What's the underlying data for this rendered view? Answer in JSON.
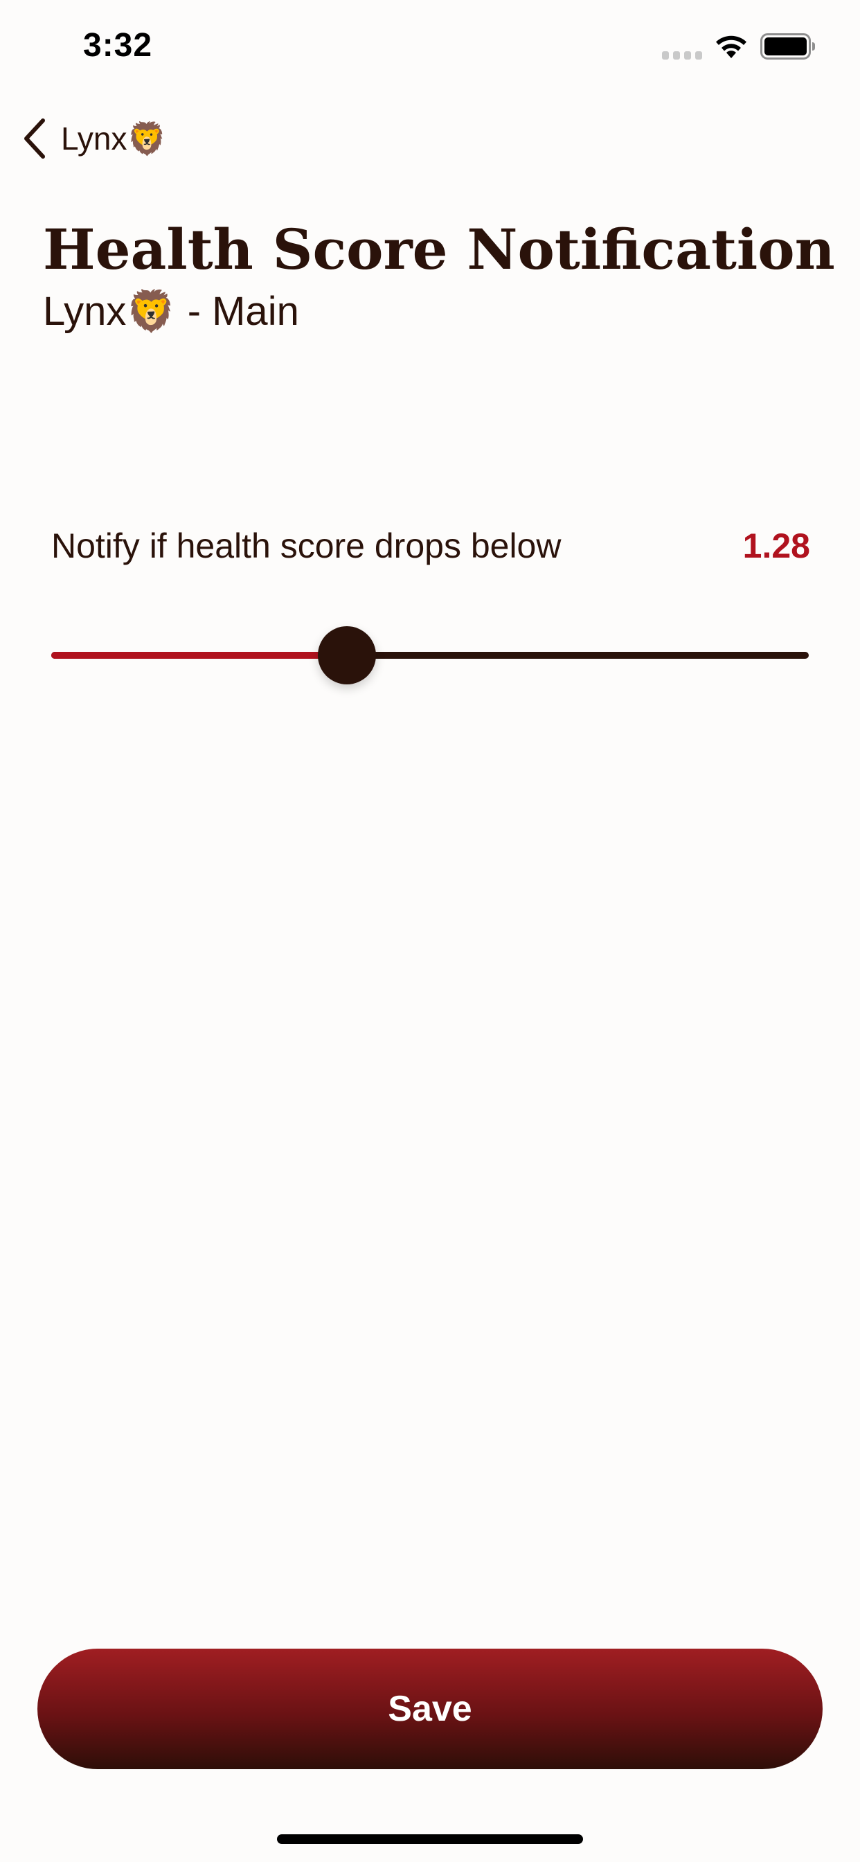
{
  "status_bar": {
    "time": "3:32",
    "signal_icon": "cellular-signal-icon",
    "wifi_icon": "wifi-icon",
    "battery_icon": "battery-icon"
  },
  "nav": {
    "back_label": "Lynx🦁",
    "back_icon": "chevron-left-icon"
  },
  "header": {
    "title": "Health Score Notification",
    "subtitle": "Lynx🦁 - Main"
  },
  "setting": {
    "label": "Notify if health score drops below",
    "value": "1.28",
    "slider_fraction": 0.39
  },
  "actions": {
    "save_label": "Save"
  },
  "colors": {
    "background": "#FDFCFB",
    "text": "#2A120A",
    "accent": "#B0121E",
    "button_top": "#A01E22",
    "button_bottom": "#2E0E08"
  }
}
